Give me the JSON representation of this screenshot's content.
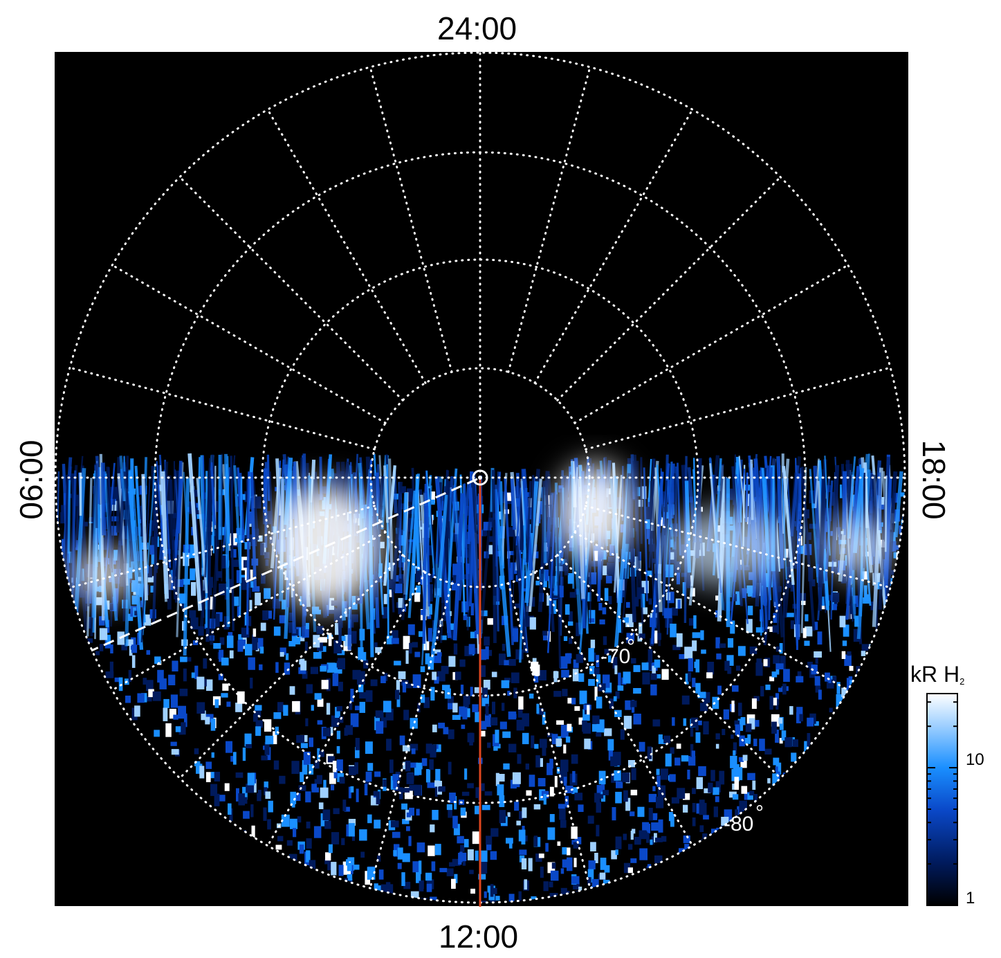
{
  "local_time_labels": {
    "top": "24:00",
    "bottom": "12:00",
    "left": "06:00",
    "right": "18:00"
  },
  "latitude_labels": [
    "-70",
    "-80"
  ],
  "colorbar": {
    "unit": "kR H",
    "unit_sub": "2",
    "ticks": [
      "10",
      "1"
    ],
    "colors": [
      "#000000",
      "#001a5c",
      "#0a48c8",
      "#1a8fff",
      "#9fd0ff",
      "#ffffff"
    ]
  },
  "colors": {
    "background": "#000000",
    "grid": "#ffffff",
    "meridian_line": "#e0461e",
    "aurora_low": "#0b3cc0",
    "aurora_mid": "#1e90ff",
    "aurora_high": "#ffffff"
  },
  "icons": {
    "pole_marker": "circle-ring-icon"
  }
}
